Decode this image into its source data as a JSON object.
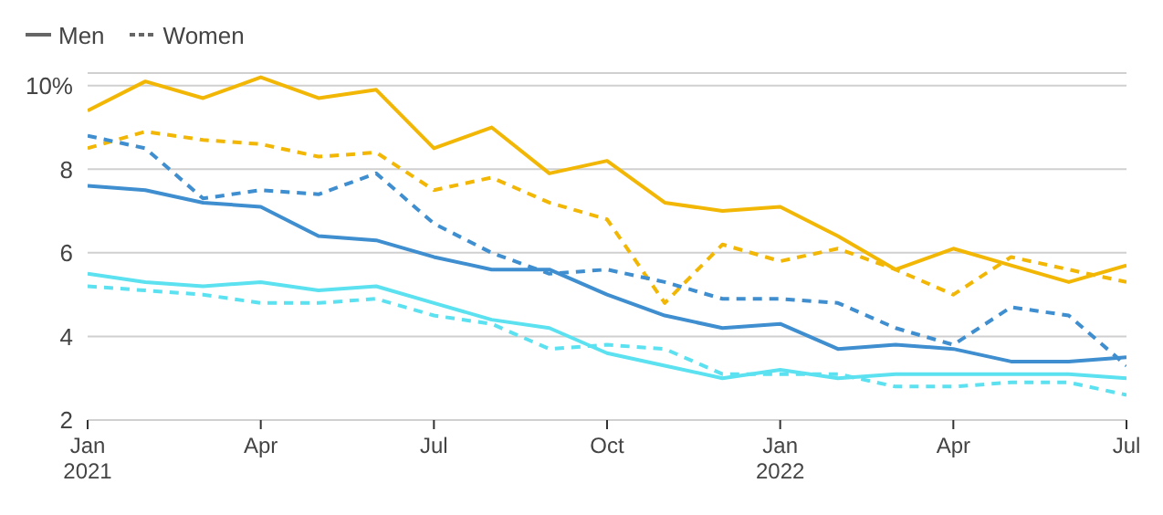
{
  "chart_data": {
    "type": "line",
    "categories": [
      "Jan\n2021",
      null,
      null,
      "Apr",
      null,
      null,
      "Jul",
      null,
      null,
      "Oct",
      null,
      null,
      "Jan\n2022",
      null,
      null,
      "Apr",
      null,
      null,
      "Jul"
    ],
    "series": [
      {
        "name": "Men",
        "color": "#666666",
        "line_style": "solid",
        "values": [
          null,
          null,
          null,
          null,
          null,
          null,
          null,
          null,
          null,
          null,
          null,
          null,
          null,
          null,
          null,
          null,
          null,
          null,
          null
        ]
      },
      {
        "name": "Women",
        "color": "#666666",
        "line_style": "dashed",
        "values": [
          null,
          null,
          null,
          null,
          null,
          null,
          null,
          null,
          null,
          null,
          null,
          null,
          null,
          null,
          null,
          null,
          null,
          null,
          null
        ]
      },
      {
        "color": "#f2b705",
        "line_style": "solid",
        "values": [
          9.4,
          10.1,
          9.7,
          10.2,
          9.7,
          9.9,
          8.5,
          9.0,
          7.9,
          8.2,
          7.2,
          7.0,
          7.1,
          6.4,
          5.6,
          6.1,
          5.7,
          5.3,
          5.7
        ]
      },
      {
        "color": "#f2b705",
        "line_style": "dashed",
        "values": [
          8.5,
          8.9,
          8.7,
          8.6,
          8.3,
          8.4,
          7.5,
          7.8,
          7.2,
          6.8,
          4.8,
          6.2,
          5.8,
          6.1,
          5.6,
          5.0,
          5.9,
          5.6,
          5.3
        ]
      },
      {
        "color": "#3f8ecf",
        "line_style": "solid",
        "values": [
          7.6,
          7.5,
          7.2,
          7.1,
          6.4,
          6.3,
          5.9,
          5.6,
          5.6,
          5.0,
          4.5,
          4.2,
          4.3,
          3.7,
          3.8,
          3.7,
          3.4,
          3.4,
          3.5
        ]
      },
      {
        "color": "#3f8ecf",
        "line_style": "dashed",
        "values": [
          8.8,
          8.5,
          7.3,
          7.5,
          7.4,
          7.9,
          6.7,
          6.0,
          5.5,
          5.6,
          5.3,
          4.9,
          4.9,
          4.8,
          4.2,
          3.8,
          4.7,
          4.5,
          3.3
        ]
      },
      {
        "color": "#5ce1f0",
        "line_style": "solid",
        "values": [
          5.5,
          5.3,
          5.2,
          5.3,
          5.1,
          5.2,
          4.8,
          4.4,
          4.2,
          3.6,
          3.3,
          3.0,
          3.2,
          3.0,
          3.1,
          3.1,
          3.1,
          3.1,
          3.0
        ]
      },
      {
        "color": "#5ce1f0",
        "line_style": "dashed",
        "values": [
          5.2,
          5.1,
          5.0,
          4.8,
          4.8,
          4.9,
          4.5,
          4.3,
          3.7,
          3.8,
          3.7,
          3.1,
          3.1,
          3.1,
          2.8,
          2.8,
          2.9,
          2.9,
          2.6
        ]
      }
    ],
    "ylim": [
      2,
      10.3
    ],
    "yticks": [
      2,
      4,
      6,
      8,
      {
        "value": 10,
        "label": "10%"
      }
    ],
    "grid": "y",
    "legend": "top left",
    "marker": "none"
  }
}
